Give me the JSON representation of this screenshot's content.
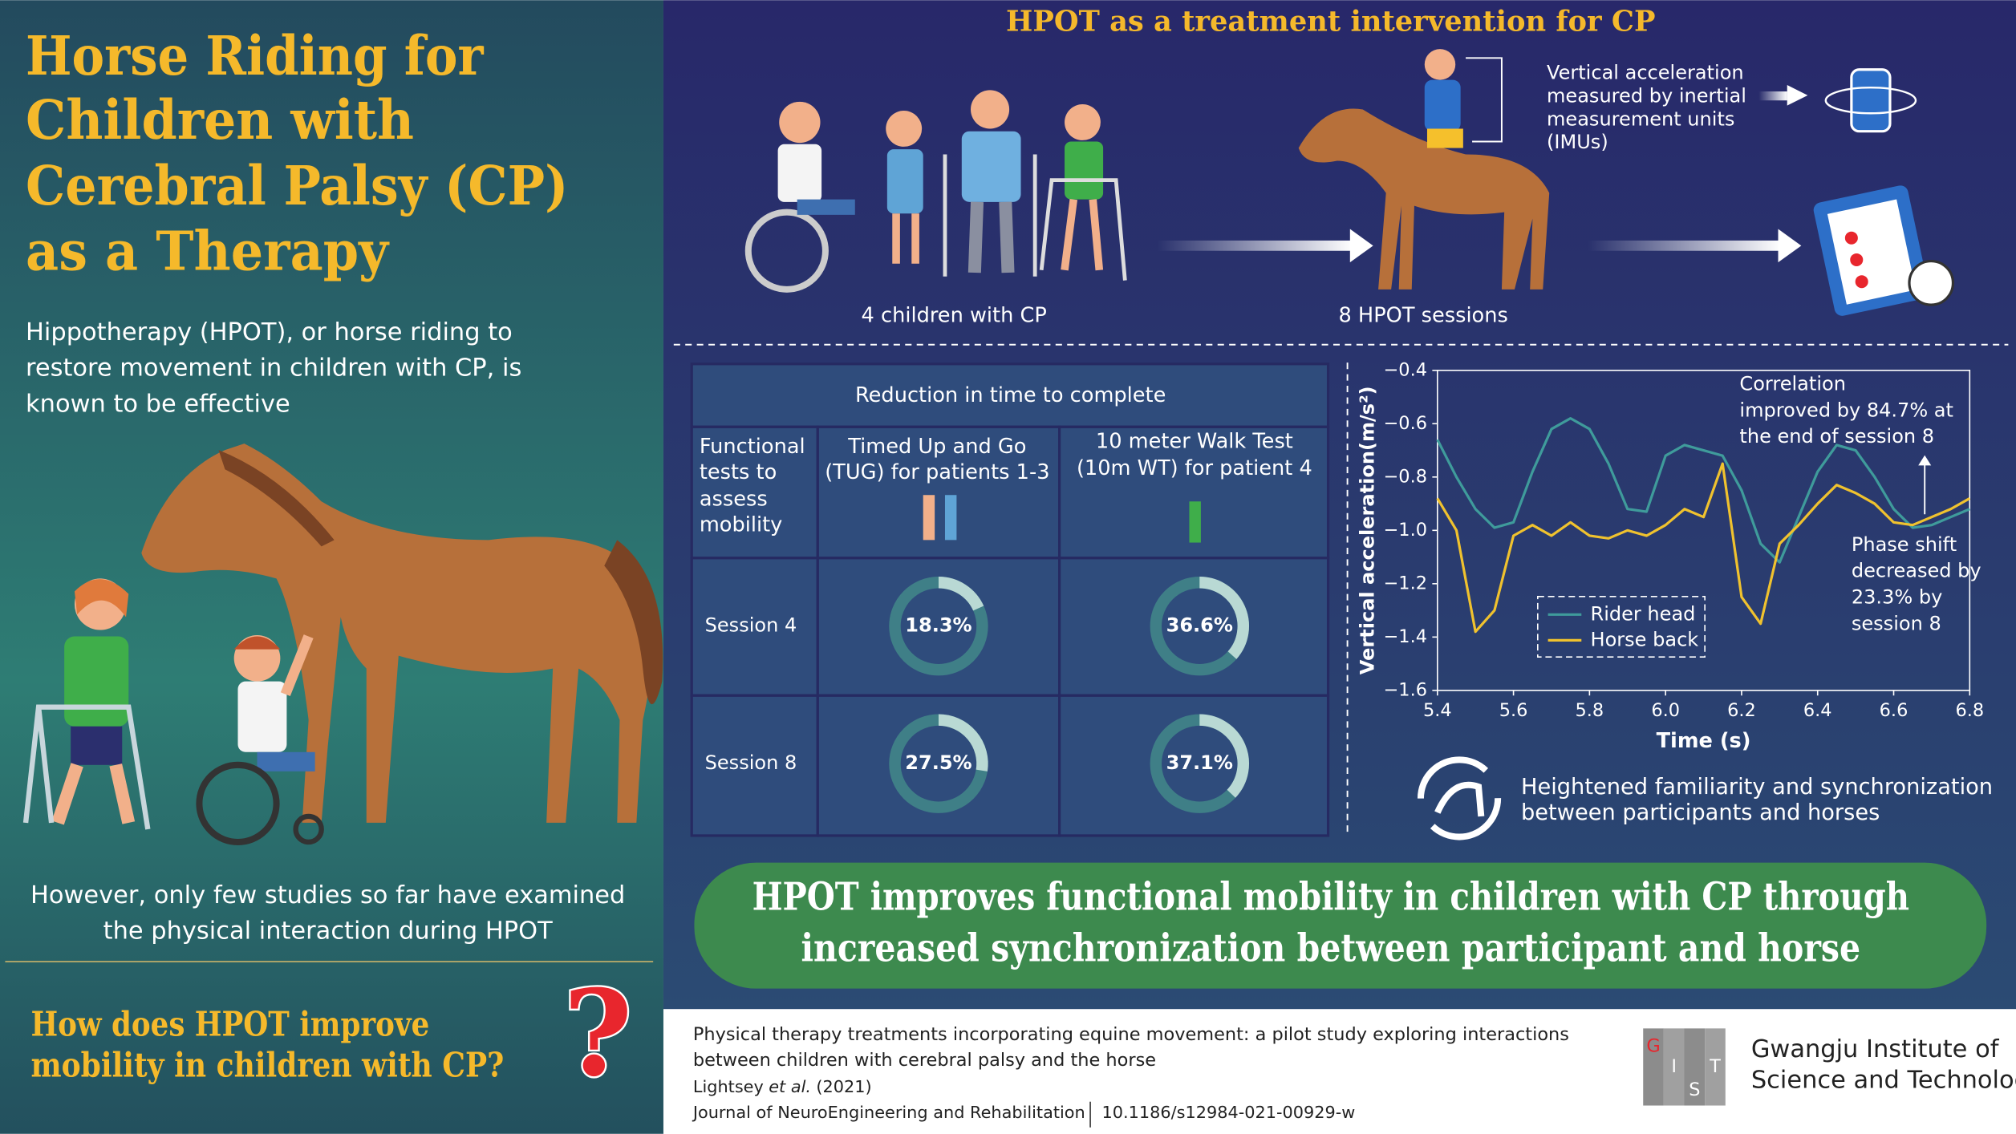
{
  "left_panel": {
    "title": [
      "Horse Riding for",
      "Children with",
      "Cerebral Palsy (CP)",
      "as a Therapy"
    ],
    "intro": [
      "Hippotherapy (HPOT), or horse riding to",
      "restore movement in children with CP, is",
      "known to be effective"
    ],
    "limitation": [
      "However, only few studies so far have examined",
      "the physical interaction during HPOT"
    ],
    "question": [
      "How does HPOT improve",
      "mobility in children with CP?"
    ],
    "question_mark": "?"
  },
  "intervention": {
    "title": "HPOT as a treatment intervention for CP",
    "participants": "4 children with CP",
    "sessions": "8 HPOT sessions",
    "measurement": [
      "Vertical acceleration",
      "measured by inertial",
      "measurement units",
      "(IMUs)"
    ]
  },
  "table": {
    "header": "Reduction in time to complete",
    "row_header": [
      "Functional",
      "tests to",
      "assess",
      "mobility"
    ],
    "columns": [
      [
        "Timed Up and Go",
        "(TUG) for patients 1-3"
      ],
      [
        "10 meter Walk Test",
        "(10m WT) for patient 4"
      ]
    ],
    "rows": [
      {
        "label": "Session 4",
        "values": [
          18.3,
          36.6
        ],
        "value_labels": [
          "18.3%",
          "36.6%"
        ]
      },
      {
        "label": "Session 8",
        "values": [
          27.5,
          37.1
        ],
        "value_labels": [
          "27.5%",
          "37.1%"
        ]
      }
    ]
  },
  "chart_data": {
    "type": "line",
    "x_label": "Time (s)",
    "y_label": "Vertical acceleration(m/s²)",
    "x": [
      5.4,
      5.45,
      5.5,
      5.55,
      5.6,
      5.65,
      5.7,
      5.75,
      5.8,
      5.85,
      5.9,
      5.95,
      6.0,
      6.05,
      6.1,
      6.15,
      6.2,
      6.25,
      6.3,
      6.35,
      6.4,
      6.45,
      6.5,
      6.55,
      6.6,
      6.65,
      6.7,
      6.75,
      6.8
    ],
    "series": [
      {
        "name": "Rider head",
        "color": "#3f9b9b",
        "values": [
          -0.66,
          -0.8,
          -0.92,
          -0.99,
          -0.97,
          -0.78,
          -0.62,
          -0.58,
          -0.62,
          -0.75,
          -0.92,
          -0.93,
          -0.72,
          -0.68,
          -0.7,
          -0.72,
          -0.85,
          -1.05,
          -1.12,
          -0.95,
          -0.78,
          -0.68,
          -0.7,
          -0.8,
          -0.92,
          -0.99,
          -0.98,
          -0.95,
          -0.92
        ]
      },
      {
        "name": "Horse back",
        "color": "#f0c22e",
        "values": [
          -0.88,
          -1.0,
          -1.38,
          -1.3,
          -1.02,
          -0.98,
          -1.02,
          -0.97,
          -1.02,
          -1.03,
          -1.0,
          -1.02,
          -0.98,
          -0.92,
          -0.95,
          -0.75,
          -1.25,
          -1.35,
          -1.05,
          -0.98,
          -0.9,
          -0.83,
          -0.86,
          -0.9,
          -0.97,
          -0.98,
          -0.95,
          -0.92,
          -0.88
        ]
      }
    ],
    "xlim": [
      5.4,
      6.8
    ],
    "ylim": [
      -1.6,
      -0.4
    ],
    "xticks": [
      5.4,
      5.6,
      5.8,
      {
        "value": 6,
        "label": "6.0"
      },
      6.2,
      6.4,
      6.6,
      6.8
    ],
    "yticks": [
      {
        "value": -0.4,
        "label": "−0.4"
      },
      {
        "value": -0.6,
        "label": "−0.6"
      },
      {
        "value": -0.8,
        "label": "−0.8"
      },
      {
        "value": -1,
        "label": "−1.0"
      },
      {
        "value": -1.2,
        "label": "−1.2"
      },
      {
        "value": -1.4,
        "label": "−1.4"
      },
      {
        "value": -1.6,
        "label": "−1.6"
      }
    ],
    "legend": "lower-left",
    "grid": false,
    "annotations": [
      [
        "Correlation",
        "improved by 84.7% at",
        "the end of session 8"
      ],
      [
        "Phase shift",
        "decreased by",
        "23.3% by",
        "session 8"
      ]
    ]
  },
  "synchronization": [
    "Heightened familiarity and synchronization",
    "between participants and horses"
  ],
  "conclusion": [
    "HPOT improves functional mobility in children with CP through",
    "increased synchronization between participant and horse"
  ],
  "citation": {
    "title": [
      "Physical therapy treatments incorporating equine movement: a pilot study exploring interactions",
      "between children with cerebral palsy and the horse"
    ],
    "author": "Lightsey",
    "et_al": "et al.",
    "year": "(2021)",
    "journal": "Journal of NeuroEngineering and Rehabilitation",
    "doi": "10.1186/s12984-021-00929-w",
    "institute": [
      "Gwangju Institute of",
      "Science and Technology"
    ],
    "logo": [
      "G",
      "I",
      "S",
      "T"
    ]
  }
}
